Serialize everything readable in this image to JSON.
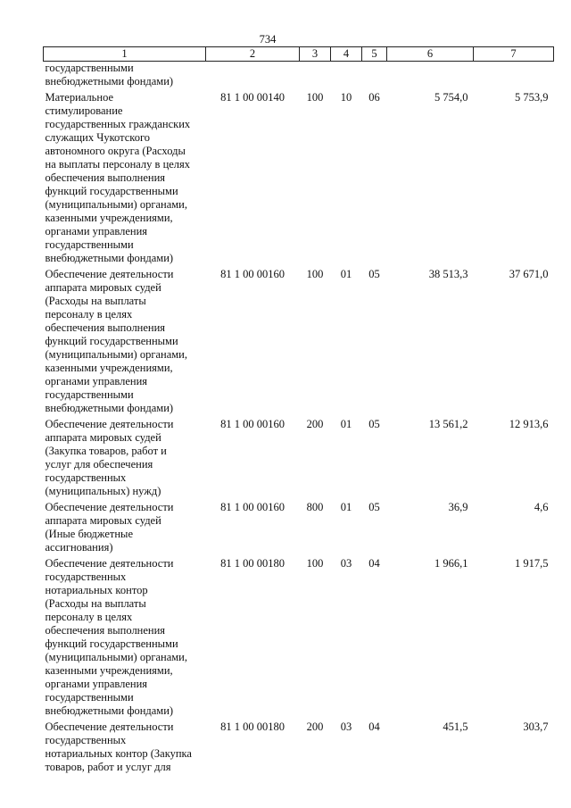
{
  "page_number": "734",
  "headers": [
    "1",
    "2",
    "3",
    "4",
    "5",
    "6",
    "7"
  ],
  "rows": [
    {
      "desc": "государственными\nвнебюджетными фондами)",
      "code": "",
      "vr": "",
      "rz": "",
      "pr": "",
      "v6": "",
      "v7": ""
    },
    {
      "desc": "Материальное\nстимулирование\nгосударственных гражданских\nслужащих Чукотского\nавтономного округа (Расходы\nна выплаты персоналу в целях\nобеспечения выполнения\nфункций государственными\n(муниципальными) органами,\nказенными учреждениями,\nорганами управления\nгосударственными\nвнебюджетными фондами)",
      "code": "81 1 00 00140",
      "vr": "100",
      "rz": "10",
      "pr": "06",
      "v6": "5 754,0",
      "v7": "5 753,9"
    },
    {
      "desc": "Обеспечение деятельности\nаппарата мировых судей\n(Расходы на выплаты\nперсоналу в целях\nобеспечения выполнения\nфункций государственными\n(муниципальными) органами,\nказенными учреждениями,\nорганами управления\nгосударственными\nвнебюджетными фондами)",
      "code": "81 1 00 00160",
      "vr": "100",
      "rz": "01",
      "pr": "05",
      "v6": "38 513,3",
      "v7": "37 671,0"
    },
    {
      "desc": "Обеспечение деятельности\nаппарата мировых судей\n(Закупка товаров, работ и\nуслуг для обеспечения\nгосударственных\n(муниципальных) нужд)",
      "code": "81 1 00 00160",
      "vr": "200",
      "rz": "01",
      "pr": "05",
      "v6": "13 561,2",
      "v7": "12 913,6"
    },
    {
      "desc": "Обеспечение деятельности\nаппарата мировых судей\n(Иные бюджетные\nассигнования)",
      "code": "81 1 00 00160",
      "vr": "800",
      "rz": "01",
      "pr": "05",
      "v6": "36,9",
      "v7": "4,6"
    },
    {
      "desc": "Обеспечение деятельности\nгосударственных\nнотариальных контор\n(Расходы на выплаты\nперсоналу в целях\nобеспечения выполнения\nфункций государственными\n(муниципальными) органами,\nказенными учреждениями,\nорганами управления\nгосударственными\nвнебюджетными фондами)",
      "code": "81 1 00 00180",
      "vr": "100",
      "rz": "03",
      "pr": "04",
      "v6": "1 966,1",
      "v7": "1 917,5"
    },
    {
      "desc": "Обеспечение деятельности\nгосударственных\nнотариальных контор (Закупка\nтоваров, работ и услуг для",
      "code": "81 1 00 00180",
      "vr": "200",
      "rz": "03",
      "pr": "04",
      "v6": "451,5",
      "v7": "303,7"
    }
  ]
}
